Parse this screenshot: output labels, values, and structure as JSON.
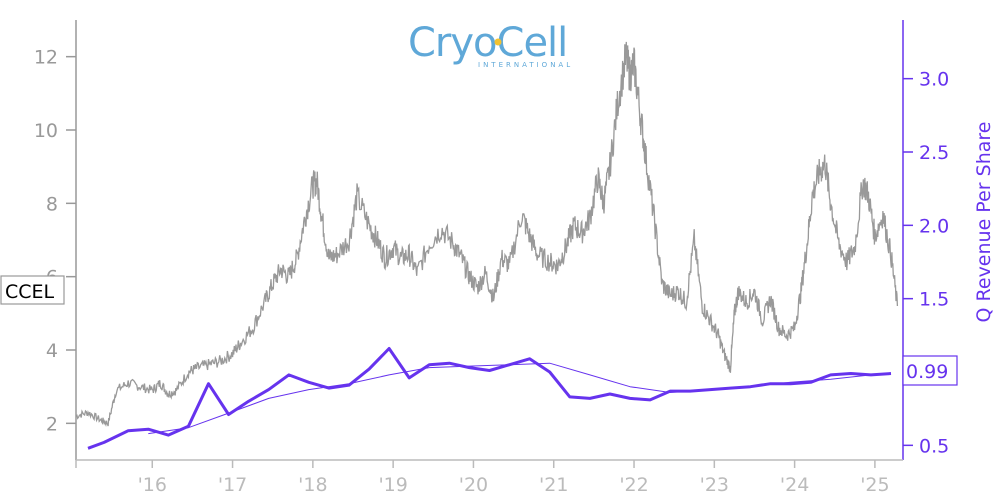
{
  "logo": {
    "text": "CryoCell",
    "subtext": "INTERNATIONAL",
    "color": "#5fa8d8",
    "dot_color": "#f2c230"
  },
  "ticker_label": "CCEL",
  "last_value_label": "0.99",
  "colors": {
    "price_line": "#999999",
    "revenue_line": "#6633ee",
    "left_axis": "#999999",
    "right_axis": "#6633ee",
    "x_axis": "#bbbbbb"
  },
  "chart_data": {
    "type": "line",
    "x_tick_labels": [
      "'16",
      "'17",
      "'18",
      "'19",
      "'20",
      "'21",
      "'22",
      "'23",
      "'24",
      "'25"
    ],
    "x_tick_years": [
      2016,
      2017,
      2018,
      2019,
      2020,
      2021,
      2022,
      2023,
      2024,
      2025
    ],
    "xlim": [
      2015.05,
      2025.35
    ],
    "left_axis": {
      "label": "",
      "ylim": [
        1.0,
        13.0
      ],
      "ticks": [
        2,
        4,
        6,
        8,
        10,
        12
      ]
    },
    "right_axis": {
      "label": "Q Revenue Per Share",
      "ylim": [
        0.4,
        3.4
      ],
      "ticks": [
        0.5,
        1.0,
        1.5,
        2.0,
        2.5,
        3.0
      ],
      "tick_labels": [
        "0.5",
        "1.0",
        "1.5",
        "2.0",
        "2.5",
        "3.0"
      ]
    },
    "series": [
      {
        "name": "CCEL",
        "axis": "left",
        "style": "thin-noisy",
        "x": [
          2015.05,
          2015.2,
          2015.35,
          2015.45,
          2015.55,
          2015.7,
          2015.85,
          2016.0,
          2016.1,
          2016.2,
          2016.3,
          2016.45,
          2016.55,
          2016.7,
          2016.85,
          2017.0,
          2017.1,
          2017.25,
          2017.4,
          2017.5,
          2017.6,
          2017.7,
          2017.8,
          2017.9,
          2018.0,
          2018.05,
          2018.12,
          2018.2,
          2018.3,
          2018.45,
          2018.55,
          2018.7,
          2018.8,
          2018.9,
          2019.0,
          2019.1,
          2019.2,
          2019.3,
          2019.45,
          2019.6,
          2019.75,
          2019.85,
          2019.95,
          2020.05,
          2020.15,
          2020.25,
          2020.35,
          2020.45,
          2020.6,
          2020.7,
          2020.8,
          2020.95,
          2021.05,
          2021.15,
          2021.25,
          2021.35,
          2021.45,
          2021.55,
          2021.62,
          2021.7,
          2021.8,
          2021.9,
          2021.95,
          2022.0,
          2022.08,
          2022.15,
          2022.25,
          2022.35,
          2022.45,
          2022.55,
          2022.65,
          2022.75,
          2022.85,
          2022.95,
          2023.05,
          2023.12,
          2023.2,
          2023.25,
          2023.3,
          2023.4,
          2023.5,
          2023.6,
          2023.7,
          2023.8,
          2023.9,
          2024.0,
          2024.08,
          2024.15,
          2024.22,
          2024.3,
          2024.38,
          2024.45,
          2024.55,
          2024.65,
          2024.75,
          2024.85,
          2024.92,
          2025.0,
          2025.1,
          2025.2,
          2025.28
        ],
        "values": [
          2.2,
          2.3,
          2.1,
          2.0,
          2.9,
          3.1,
          3.0,
          2.9,
          3.1,
          2.8,
          2.9,
          3.4,
          3.5,
          3.6,
          3.7,
          3.9,
          4.2,
          4.6,
          5.3,
          5.8,
          6.2,
          6.0,
          6.5,
          7.6,
          8.5,
          8.6,
          7.5,
          6.5,
          6.6,
          7.0,
          8.2,
          7.4,
          7.0,
          6.5,
          6.8,
          6.5,
          6.6,
          6.1,
          6.9,
          7.3,
          6.9,
          6.5,
          6.0,
          5.7,
          6.1,
          5.4,
          6.5,
          6.3,
          7.7,
          7.1,
          6.6,
          6.4,
          6.3,
          6.8,
          7.4,
          7.2,
          7.6,
          8.7,
          8.0,
          9.0,
          10.8,
          12.0,
          11.5,
          11.8,
          10.4,
          9.2,
          7.6,
          5.8,
          5.5,
          5.6,
          5.3,
          7.0,
          5.2,
          4.8,
          4.4,
          3.9,
          3.5,
          5.0,
          5.6,
          5.3,
          5.6,
          4.8,
          5.4,
          4.6,
          4.4,
          4.6,
          5.6,
          6.8,
          8.2,
          8.8,
          9.1,
          8.0,
          6.9,
          6.4,
          6.8,
          8.6,
          8.2,
          7.1,
          7.7,
          6.6,
          5.2
        ]
      },
      {
        "name": "Q Revenue Per Share",
        "axis": "right",
        "style": "thick",
        "x": [
          2015.2,
          2015.4,
          2015.7,
          2015.95,
          2016.2,
          2016.45,
          2016.7,
          2016.95,
          2017.2,
          2017.45,
          2017.7,
          2017.95,
          2018.2,
          2018.45,
          2018.7,
          2018.95,
          2019.2,
          2019.45,
          2019.7,
          2019.95,
          2020.2,
          2020.45,
          2020.7,
          2020.95,
          2021.2,
          2021.45,
          2021.7,
          2021.95,
          2022.2,
          2022.45,
          2022.7,
          2022.95,
          2023.2,
          2023.45,
          2023.7,
          2023.95,
          2024.2,
          2024.45,
          2024.7,
          2024.95,
          2025.2
        ],
        "values": [
          0.48,
          0.52,
          0.6,
          0.61,
          0.57,
          0.63,
          0.92,
          0.71,
          0.8,
          0.88,
          0.98,
          0.93,
          0.89,
          0.91,
          1.02,
          1.16,
          0.96,
          1.05,
          1.06,
          1.03,
          1.01,
          1.05,
          1.09,
          1.0,
          0.83,
          0.82,
          0.85,
          0.82,
          0.81,
          0.87,
          0.87,
          0.88,
          0.89,
          0.9,
          0.92,
          0.92,
          0.93,
          0.98,
          0.99,
          0.98,
          0.99
        ]
      },
      {
        "name": "Q Revenue Per Share trend",
        "axis": "right",
        "style": "thin-smooth",
        "x": [
          2015.95,
          2016.45,
          2016.95,
          2017.45,
          2017.95,
          2018.45,
          2018.95,
          2019.45,
          2019.95,
          2020.45,
          2020.95,
          2021.45,
          2021.95,
          2022.45,
          2022.95,
          2023.45,
          2023.95,
          2024.45,
          2024.95,
          2025.2
        ],
        "values": [
          0.58,
          0.62,
          0.72,
          0.82,
          0.88,
          0.92,
          0.98,
          1.03,
          1.04,
          1.05,
          1.06,
          0.98,
          0.9,
          0.86,
          0.88,
          0.9,
          0.93,
          0.95,
          0.98,
          0.99
        ]
      }
    ],
    "grid": false,
    "legend": "none"
  }
}
